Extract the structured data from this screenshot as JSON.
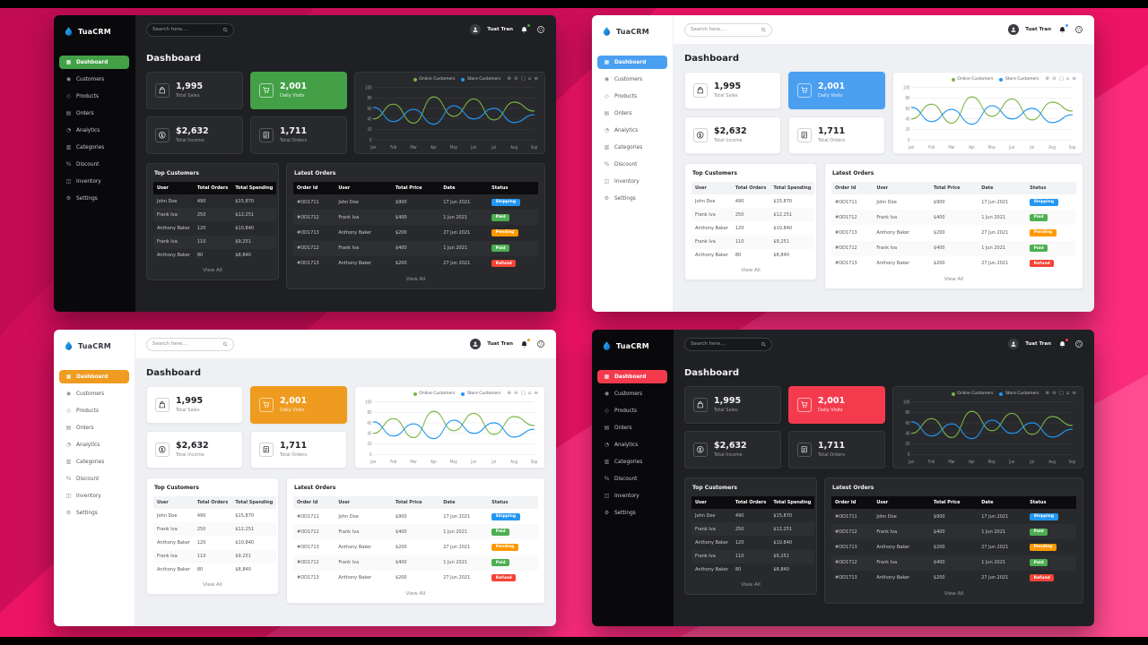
{
  "background": {
    "base_color": "#ec1464",
    "letterbox_color": "#000000"
  },
  "panels": [
    {
      "position": "top-left",
      "theme": "dark",
      "accent": "#43a047"
    },
    {
      "position": "top-right",
      "theme": "light",
      "accent": "#4a9ff0"
    },
    {
      "position": "bottom-left",
      "theme": "light",
      "accent": "#ee9b1f"
    },
    {
      "position": "bottom-right",
      "theme": "dark",
      "accent": "#f43b4e"
    }
  ],
  "dashboard": {
    "brand": "TuaCRM",
    "sidebar": [
      {
        "label": "Dashboard",
        "icon": "dashboard-icon",
        "active": true
      },
      {
        "label": "Customers",
        "icon": "customers-icon",
        "active": false
      },
      {
        "label": "Products",
        "icon": "products-icon",
        "active": false
      },
      {
        "label": "Orders",
        "icon": "orders-icon",
        "active": false
      },
      {
        "label": "Analytics",
        "icon": "analytics-icon",
        "active": false
      },
      {
        "label": "Categories",
        "icon": "categories-icon",
        "active": false
      },
      {
        "label": "Discount",
        "icon": "discount-icon",
        "active": false
      },
      {
        "label": "Inventory",
        "icon": "inventory-icon",
        "active": false
      },
      {
        "label": "Settings",
        "icon": "settings-icon",
        "active": false
      }
    ],
    "topbar": {
      "search_placeholder": "Search here....",
      "user_name": "Tuat Tran"
    },
    "page_title": "Dashboard",
    "stats": [
      {
        "value": "1,995",
        "label": "Total Sales",
        "icon": "shopping-bag-icon",
        "highlight": false
      },
      {
        "value": "2,001",
        "label": "Daily Visits",
        "icon": "shopping-cart-icon",
        "highlight": true
      },
      {
        "value": "$2,632",
        "label": "Total Income",
        "icon": "dollar-circle-icon",
        "highlight": false
      },
      {
        "value": "1,711",
        "label": "Total Orders",
        "icon": "receipt-icon",
        "highlight": false
      }
    ],
    "chart_toolbar_icons": [
      "zoom-in-icon",
      "zoom-out-icon",
      "autoscale-icon",
      "home-icon",
      "menu-icon"
    ],
    "top_customers": {
      "title": "Top Customers",
      "headers": [
        "User",
        "Total Orders",
        "Total Spending"
      ],
      "rows": [
        [
          "John Doe",
          "490",
          "$15,870"
        ],
        [
          "Frank Iva",
          "250",
          "$12,251"
        ],
        [
          "Anthony Baker",
          "120",
          "$10,840"
        ],
        [
          "Frank Iva",
          "110",
          "$9,251"
        ],
        [
          "Anthony Baker",
          "80",
          "$8,840"
        ]
      ],
      "view_all": "View All"
    },
    "latest_orders": {
      "title": "Latest Orders",
      "headers": [
        "Order Id",
        "User",
        "Total Price",
        "Date",
        "Status"
      ],
      "rows": [
        [
          "#OD1711",
          "John Doe",
          "$900",
          "17 Jun 2021",
          "Shipping"
        ],
        [
          "#OD1712",
          "Frank Iva",
          "$400",
          "1 Jun 2021",
          "Paid"
        ],
        [
          "#OD1713",
          "Anthony Baker",
          "$200",
          "27 Jun 2021",
          "Pending"
        ],
        [
          "#OD1712",
          "Frank Iva",
          "$400",
          "1 Jun 2021",
          "Paid"
        ],
        [
          "#OD1713",
          "Anthony Baker",
          "$200",
          "27 Jun 2021",
          "Refund"
        ]
      ],
      "status_colors": {
        "Shipping": "#2196f3",
        "Paid": "#4caf50",
        "Pending": "#ff9800",
        "Refund": "#f44336"
      },
      "view_all": "View All"
    }
  },
  "chart_data": {
    "type": "line",
    "title": "",
    "x": [
      "Jan",
      "Feb",
      "Mar",
      "Apr",
      "May",
      "Jun",
      "Jul",
      "Aug",
      "Sep"
    ],
    "series": [
      {
        "name": "Online Customers",
        "color": "#7cb342",
        "values": [
          40,
          68,
          32,
          82,
          45,
          78,
          38,
          72,
          55
        ]
      },
      {
        "name": "Store Customers",
        "color": "#2196f3",
        "values": [
          62,
          35,
          58,
          30,
          65,
          40,
          60,
          33,
          48
        ]
      }
    ],
    "ylim": [
      0,
      100
    ],
    "yticks": [
      0,
      20,
      40,
      60,
      80,
      100
    ],
    "xlabel": "",
    "ylabel": "",
    "grid": true,
    "legend_position": "top-right"
  }
}
